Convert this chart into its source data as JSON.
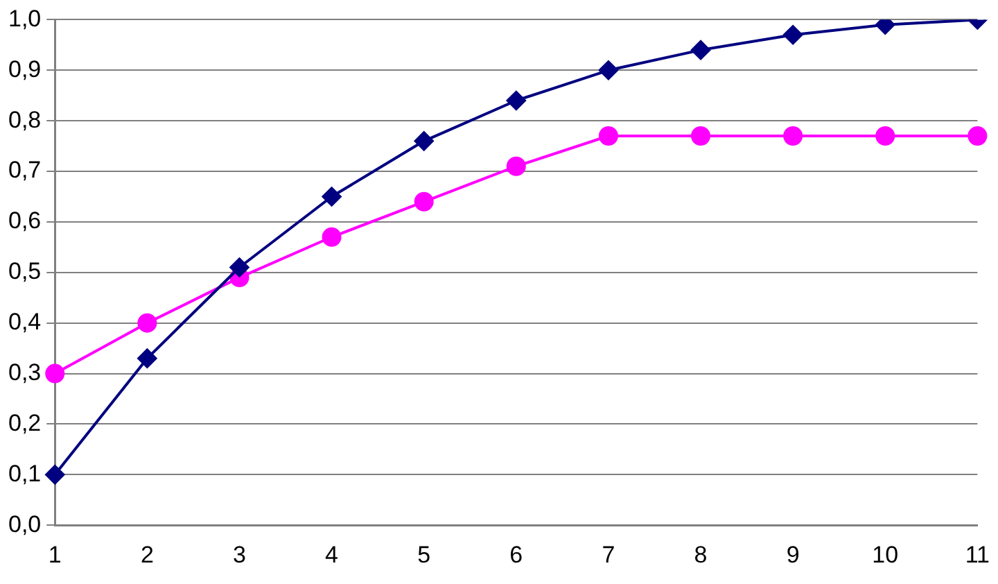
{
  "chart_data": {
    "type": "line",
    "categories": [
      "1",
      "2",
      "3",
      "4",
      "5",
      "6",
      "7",
      "8",
      "9",
      "10",
      "11"
    ],
    "series": [
      {
        "color": "#000080",
        "marker": "diamond",
        "values": [
          0.1,
          0.33,
          0.51,
          0.65,
          0.76,
          0.84,
          0.9,
          0.94,
          0.97,
          0.99,
          1.0
        ]
      },
      {
        "color": "#ff00ff",
        "marker": "circle",
        "values": [
          0.3,
          0.4,
          0.49,
          0.57,
          0.64,
          0.71,
          0.77,
          0.77,
          0.77,
          0.77,
          0.77
        ]
      }
    ],
    "ylim": [
      0,
      1
    ],
    "yticks": [
      {
        "value": 0,
        "label": "0,0"
      },
      {
        "value": 0.1,
        "label": "0,1"
      },
      {
        "value": 0.2,
        "label": "0,2"
      },
      {
        "value": 0.3,
        "label": "0,3"
      },
      {
        "value": 0.4,
        "label": "0,4"
      },
      {
        "value": 0.5,
        "label": "0,5"
      },
      {
        "value": 0.6,
        "label": "0,6"
      },
      {
        "value": 0.7,
        "label": "0,7"
      },
      {
        "value": 0.8,
        "label": "0,8"
      },
      {
        "value": 0.9,
        "label": "0,9"
      },
      {
        "value": 1,
        "label": "1,0"
      }
    ],
    "grid": "y",
    "legend": false,
    "line_style": "solid"
  }
}
